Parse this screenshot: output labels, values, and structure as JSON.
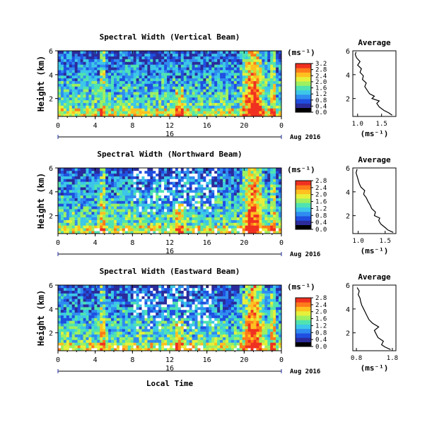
{
  "date_label": "Aug 2016",
  "day_label": "16",
  "xlabel": "Local Time",
  "unit_label": "(ms⁻¹)",
  "colorbar_ticks": [
    [
      "0.0",
      "0.4",
      "0.8",
      "1.2",
      "1.6",
      "2.0",
      "2.4",
      "2.8",
      "3.2"
    ],
    [
      "0.0",
      "0.4",
      "0.8",
      "1.2",
      "1.6",
      "2.0",
      "2.4",
      "2.8"
    ],
    [
      "0.0",
      "0.4",
      "0.8",
      "1.2",
      "1.6",
      "2.0",
      "2.4",
      "2.8"
    ]
  ],
  "colorscale": [
    "#000000",
    "#2b2b9b",
    "#1f4fe0",
    "#2f8cf0",
    "#3cc7e8",
    "#4fe3b0",
    "#9ef060",
    "#e6f03a",
    "#ffc020",
    "#ff7a1a",
    "#f03020"
  ],
  "chart_data": [
    {
      "type": "heatmap",
      "title": "Spectral Width (Vertical Beam)",
      "xlabel": "",
      "ylabel": "Height (km)",
      "xlim": [
        0,
        24
      ],
      "ylim": [
        0.5,
        6
      ],
      "xticks": [
        "0",
        "4",
        "8",
        "12",
        "16",
        "20",
        "0"
      ],
      "yticks": [
        "2",
        "4",
        "6"
      ],
      "colorbar_range": [
        0,
        3.2
      ],
      "average": {
        "title": "Average",
        "xlabel": "(ms⁻¹)",
        "xlim": [
          0.9,
          1.8
        ],
        "xticks": [
          "1.0",
          "1.5"
        ],
        "yticks": [
          "2",
          "4",
          "6"
        ],
        "profile": [
          [
            1.72,
            0.6
          ],
          [
            1.65,
            0.8
          ],
          [
            1.55,
            1.0
          ],
          [
            1.45,
            1.3
          ],
          [
            1.4,
            1.6
          ],
          [
            1.45,
            1.8
          ],
          [
            1.3,
            2.0
          ],
          [
            1.35,
            2.2
          ],
          [
            1.25,
            2.4
          ],
          [
            1.2,
            2.7
          ],
          [
            1.15,
            3.0
          ],
          [
            1.18,
            3.3
          ],
          [
            1.1,
            3.6
          ],
          [
            1.12,
            3.9
          ],
          [
            1.05,
            4.2
          ],
          [
            1.08,
            4.5
          ],
          [
            1.0,
            4.8
          ],
          [
            1.05,
            5.1
          ],
          [
            0.98,
            5.4
          ],
          [
            0.95,
            5.7
          ],
          [
            0.97,
            5.9
          ]
        ]
      }
    },
    {
      "type": "heatmap",
      "title": "Spectral Width (Northward Beam)",
      "xlabel": "",
      "ylabel": "Height (km)",
      "xlim": [
        0,
        24
      ],
      "ylim": [
        0.5,
        6
      ],
      "xticks": [
        "0",
        "4",
        "8",
        "12",
        "16",
        "20",
        "0"
      ],
      "yticks": [
        "2",
        "4",
        "6"
      ],
      "colorbar_range": [
        0,
        2.8
      ],
      "average": {
        "title": "Average",
        "xlabel": "(ms⁻¹)",
        "xlim": [
          0.9,
          1.7
        ],
        "xticks": [
          "1.0",
          "1.5"
        ],
        "yticks": [
          "2",
          "4",
          "6"
        ],
        "profile": [
          [
            1.65,
            0.6
          ],
          [
            1.55,
            0.8
          ],
          [
            1.5,
            1.0
          ],
          [
            1.42,
            1.3
          ],
          [
            1.38,
            1.6
          ],
          [
            1.4,
            1.8
          ],
          [
            1.3,
            2.0
          ],
          [
            1.32,
            2.3
          ],
          [
            1.25,
            2.6
          ],
          [
            1.22,
            2.9
          ],
          [
            1.18,
            3.2
          ],
          [
            1.15,
            3.5
          ],
          [
            1.1,
            3.8
          ],
          [
            1.12,
            4.1
          ],
          [
            1.05,
            4.4
          ],
          [
            1.02,
            4.7
          ],
          [
            1.0,
            5.0
          ],
          [
            0.98,
            5.3
          ],
          [
            0.96,
            5.6
          ],
          [
            0.98,
            5.9
          ]
        ]
      }
    },
    {
      "type": "heatmap",
      "title": "Spectral Width (Eastward Beam)",
      "xlabel": "Local Time",
      "ylabel": "Height (km)",
      "xlim": [
        0,
        24
      ],
      "ylim": [
        0.5,
        6
      ],
      "xticks": [
        "0",
        "4",
        "8",
        "12",
        "16",
        "20",
        "0"
      ],
      "yticks": [
        "2",
        "4",
        "6"
      ],
      "colorbar_range": [
        0,
        2.8
      ],
      "average": {
        "title": "Average",
        "xlabel": "(ms⁻¹)",
        "xlim": [
          0.7,
          1.9
        ],
        "xticks": [
          "0.8",
          "1.8"
        ],
        "yticks": [
          "2",
          "4",
          "6"
        ],
        "profile": [
          [
            1.75,
            0.6
          ],
          [
            1.6,
            0.8
          ],
          [
            1.5,
            1.0
          ],
          [
            1.55,
            1.3
          ],
          [
            1.4,
            1.6
          ],
          [
            1.35,
            1.9
          ],
          [
            1.3,
            2.2
          ],
          [
            1.42,
            2.5
          ],
          [
            1.25,
            2.8
          ],
          [
            1.15,
            3.1
          ],
          [
            1.1,
            3.4
          ],
          [
            1.05,
            3.7
          ],
          [
            1.0,
            4.0
          ],
          [
            0.95,
            4.3
          ],
          [
            0.92,
            4.6
          ],
          [
            0.9,
            4.9
          ],
          [
            0.85,
            5.2
          ],
          [
            0.88,
            5.5
          ],
          [
            0.82,
            5.8
          ]
        ]
      }
    }
  ]
}
